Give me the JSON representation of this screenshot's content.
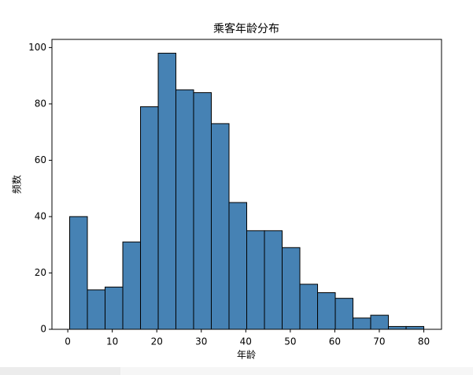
{
  "chart_data": {
    "type": "histogram",
    "title": "乘客年龄分布",
    "x_label": "年龄",
    "y_label": "频数",
    "bins": [
      0.42,
      4.4,
      8.38,
      12.36,
      16.34,
      20.32,
      24.29,
      28.27,
      32.25,
      36.23,
      40.21,
      44.19,
      48.17,
      52.15,
      56.13,
      60.11,
      64.08,
      68.06,
      72.04,
      76.02,
      80
    ],
    "values": [
      40,
      14,
      15,
      31,
      79,
      98,
      85,
      84,
      73,
      45,
      35,
      35,
      29,
      16,
      13,
      11,
      4,
      5,
      1,
      1
    ],
    "color": "#4682b4",
    "edge_color": "#000000",
    "xlim": [
      -3.56,
      83.98
    ],
    "xticks": [
      0,
      10,
      20,
      30,
      40,
      50,
      60,
      70,
      80
    ],
    "ylim": [
      0,
      102.9
    ],
    "yticks": [
      0,
      20,
      40,
      60,
      80,
      100
    ],
    "grid": false
  }
}
